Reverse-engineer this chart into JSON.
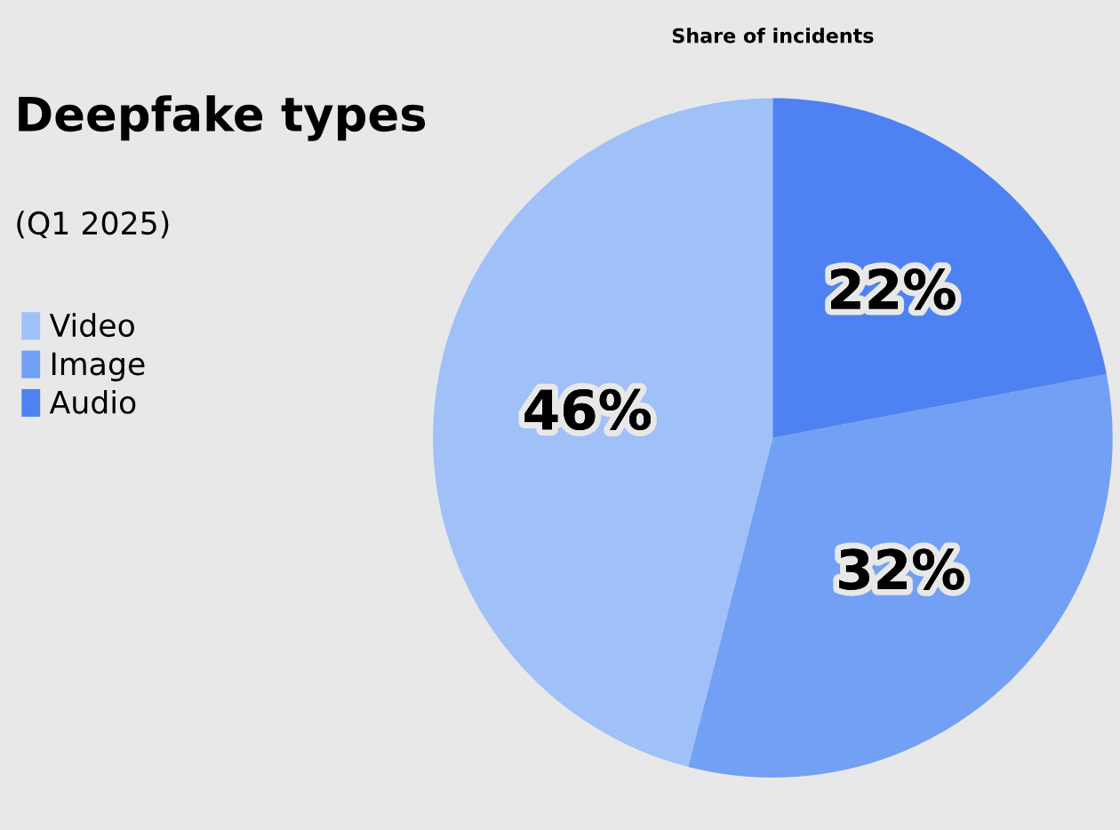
{
  "chart_data": {
    "type": "pie",
    "title": "Deepfake types",
    "subtitle": "(Q1 2025)",
    "annotations": [
      "Share of incidents"
    ],
    "categories": [
      "Video",
      "Image",
      "Audio"
    ],
    "values": [
      46,
      32,
      22
    ],
    "colors": [
      "#a0c0f8",
      "#72a0f4",
      "#4e82f2"
    ],
    "value_labels": [
      "46%",
      "32%",
      "22%"
    ],
    "legend": "left"
  }
}
